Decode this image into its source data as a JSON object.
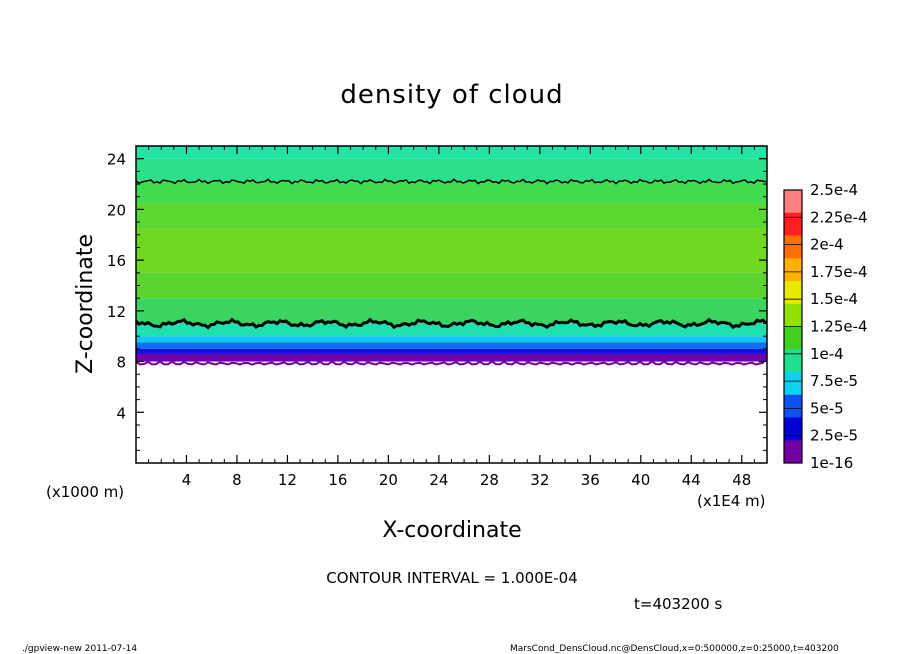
{
  "chart_data": {
    "type": "heatmap",
    "title": "density of cloud",
    "xlabel": "X-coordinate",
    "ylabel": "Z-coordinate",
    "x_unit": "(x1E4 m)",
    "y_unit": "(x1000 m)",
    "xlim": [
      0,
      50
    ],
    "ylim": [
      0,
      25
    ],
    "x_ticks": [
      "4",
      "8",
      "12",
      "16",
      "20",
      "24",
      "28",
      "32",
      "36",
      "40",
      "44",
      "48"
    ],
    "y_ticks": [
      "4",
      "8",
      "12",
      "16",
      "20",
      "24"
    ],
    "colorbar": {
      "labels": [
        "2.5e-4",
        "2.25e-4",
        "2e-4",
        "1.75e-4",
        "1.5e-4",
        "1.25e-4",
        "1e-4",
        "7.5e-5",
        "5e-5",
        "2.5e-5",
        "1e-16"
      ],
      "colors": [
        "#ff8080",
        "#ff2020",
        "#ff7000",
        "#ffb000",
        "#e8e800",
        "#90e000",
        "#40d020",
        "#20e090",
        "#10d0f0",
        "#1050f0",
        "#0000d0",
        "#7000a0"
      ]
    },
    "contour_interval": "CONTOUR INTERVAL = 1.000E-04",
    "time": "t=403200 s",
    "field_bands": [
      {
        "z": [
          24.0,
          25.0
        ],
        "color": "#22e4a8"
      },
      {
        "z": [
          22.2,
          24.0
        ],
        "color": "#2ce08a"
      },
      {
        "z": [
          20.5,
          22.2
        ],
        "color": "#40dc50"
      },
      {
        "z": [
          18.5,
          20.5
        ],
        "color": "#5ad830"
      },
      {
        "z": [
          15.0,
          18.5
        ],
        "color": "#70d820"
      },
      {
        "z": [
          13.0,
          15.0
        ],
        "color": "#5cd430"
      },
      {
        "z": [
          11.0,
          13.0
        ],
        "color": "#3cd460"
      },
      {
        "z": [
          10.0,
          11.0
        ],
        "color": "#20e0b0"
      },
      {
        "z": [
          9.5,
          10.0
        ],
        "color": "#10c8f0"
      },
      {
        "z": [
          9.0,
          9.5
        ],
        "color": "#1070f0"
      },
      {
        "z": [
          8.6,
          9.0
        ],
        "color": "#1010e0"
      },
      {
        "z": [
          8.0,
          8.6
        ],
        "color": "#7000a8"
      }
    ],
    "contour_levels_z": [
      22.2,
      11.0
    ],
    "cloud_base_z": 8.0
  },
  "footer": {
    "left": "./gpview-new  2011-07-14",
    "right": "MarsCond_DensCloud.nc@DensCloud,x=0:500000,z=0:25000,t=403200"
  }
}
